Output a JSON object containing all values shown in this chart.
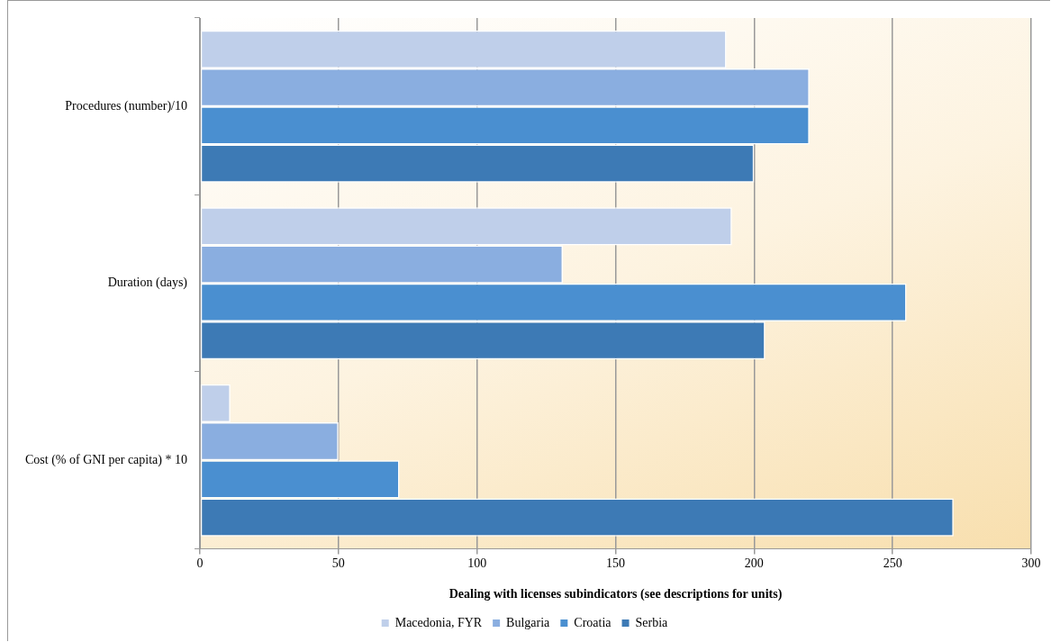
{
  "chart_data": {
    "type": "bar",
    "orientation": "horizontal",
    "xlabel": "Dealing with licenses subindicators (see descriptions for units)",
    "categories": [
      "Procedures (number)/10",
      "Duration (days)",
      "Cost (% of GNI per capita) * 10"
    ],
    "series": [
      {
        "name": "Macedonia, FYR",
        "color": "#bfcfea",
        "values": [
          190,
          192,
          11
        ]
      },
      {
        "name": "Bulgaria",
        "color": "#8aaee0",
        "values": [
          220,
          131,
          50
        ]
      },
      {
        "name": "Croatia",
        "color": "#4a8fd0",
        "values": [
          220,
          255,
          72
        ]
      },
      {
        "name": "Serbia",
        "color": "#3d7ab5",
        "values": [
          200,
          204,
          272
        ]
      }
    ],
    "xlim": [
      0,
      300
    ],
    "xticks": [
      0,
      50,
      100,
      150,
      200,
      250,
      300
    ],
    "grid": "x",
    "legend": "bottom"
  }
}
